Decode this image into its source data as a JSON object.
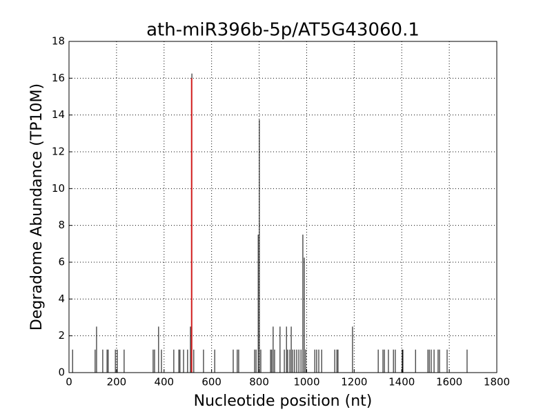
{
  "chart_data": {
    "type": "vlines",
    "title": "ath-miR396b-5p/AT5G43060.1",
    "x_label": "Nucleotide position (nt)",
    "y_label": "Degradome Abundance (TP10M)",
    "xlim": [
      0,
      1800
    ],
    "ylim": [
      0,
      18
    ],
    "xticks": [
      0,
      200,
      400,
      600,
      800,
      1000,
      1200,
      1400,
      1600,
      1800
    ],
    "yticks": [
      0,
      2,
      4,
      6,
      8,
      10,
      12,
      14,
      16,
      18
    ],
    "grid": true,
    "series": [
      {
        "color": "#000000",
        "x": [
          15,
          110,
          116,
          142,
          160,
          165,
          195,
          203,
          232,
          354,
          360,
          377,
          389,
          441,
          462,
          467,
          482,
          499,
          511,
          517,
          525,
          566,
          613,
          691,
          708,
          714,
          781,
          787,
          796,
          801,
          807,
          848,
          853,
          859,
          865,
          888,
          906,
          915,
          920,
          929,
          935,
          941,
          949,
          958,
          967,
          976,
          984,
          990,
          996,
          1034,
          1042,
          1051,
          1063,
          1118,
          1127,
          1132,
          1193,
          1301,
          1321,
          1327,
          1344,
          1365,
          1373,
          1402,
          1405,
          1458,
          1510,
          1516,
          1524,
          1536,
          1553,
          1559,
          1591,
          1675
        ],
        "values": [
          1.25,
          1.25,
          2.5,
          1.25,
          1.25,
          1.25,
          1.25,
          1.25,
          1.25,
          1.25,
          1.25,
          2.5,
          1.25,
          1.25,
          1.25,
          1.25,
          1.25,
          1.25,
          2.5,
          16.25,
          1.25,
          1.25,
          1.25,
          1.25,
          1.25,
          1.25,
          1.25,
          1.25,
          7.5,
          13.75,
          1.25,
          1.25,
          1.25,
          2.5,
          1.25,
          2.5,
          1.25,
          2.5,
          1.25,
          1.25,
          2.5,
          1.25,
          1.25,
          1.25,
          1.25,
          1.25,
          7.5,
          6.25,
          1.25,
          1.25,
          1.25,
          1.25,
          1.25,
          1.25,
          1.25,
          1.25,
          2.5,
          1.25,
          1.25,
          1.25,
          1.25,
          1.25,
          1.25,
          1.25,
          1.25,
          1.25,
          1.25,
          1.25,
          1.25,
          1.25,
          1.25,
          1.25,
          1.25,
          1.25
        ]
      },
      {
        "color": "#d62020",
        "x": [
          516
        ],
        "values": [
          16
        ]
      }
    ]
  }
}
